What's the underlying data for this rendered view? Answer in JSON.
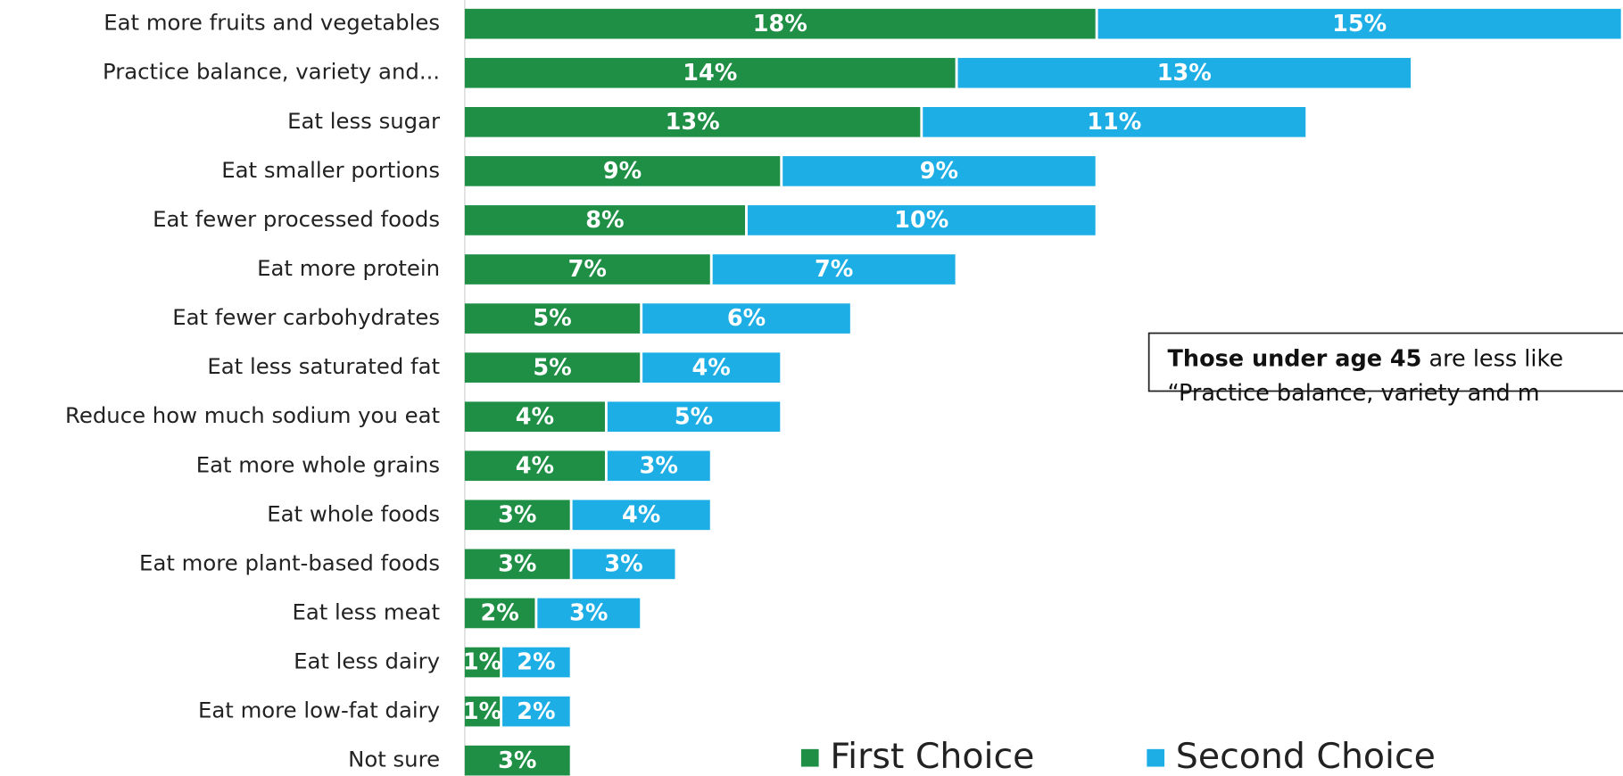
{
  "chart_data": {
    "type": "stacked-bar-horizontal",
    "categories": [
      "Eat more fruits and vegetables",
      "Practice balance, variety and...",
      "Eat less sugar",
      "Eat smaller portions",
      "Eat fewer processed foods",
      "Eat more protein",
      "Eat fewer carbohydrates",
      "Eat less saturated fat",
      "Reduce how much sodium you eat",
      "Eat more whole grains",
      "Eat whole foods",
      "Eat more plant-based foods",
      "Eat less meat",
      "Eat less dairy",
      "Eat more low-fat dairy",
      "Not sure"
    ],
    "series": [
      {
        "name": "First Choice",
        "color": "#1e8f45",
        "values": [
          18,
          14,
          13,
          9,
          8,
          7,
          5,
          5,
          4,
          4,
          3,
          3,
          2,
          1,
          1,
          3
        ],
        "value_labels": [
          "18%",
          "14%",
          "13%",
          "9%",
          "8%",
          "7%",
          "5%",
          "5%",
          "4%",
          "4%",
          "3%",
          "3%",
          "2%",
          "1%",
          "1%",
          "3%"
        ]
      },
      {
        "name": "Second Choice",
        "color": "#1eaee6",
        "values": [
          15,
          13,
          11,
          9,
          10,
          7,
          6,
          4,
          5,
          3,
          4,
          3,
          3,
          2,
          2,
          null
        ],
        "value_labels": [
          "15%",
          "13%",
          "11%",
          "9%",
          "10%",
          "7%",
          "6%",
          "4%",
          "5%",
          "3%",
          "4%",
          "3%",
          "3%",
          "2%",
          "2%",
          null
        ]
      }
    ],
    "annotation": {
      "bold": "Those under age 45",
      "text": " are less like",
      "line2": "“Practice balance, variety and m"
    }
  }
}
